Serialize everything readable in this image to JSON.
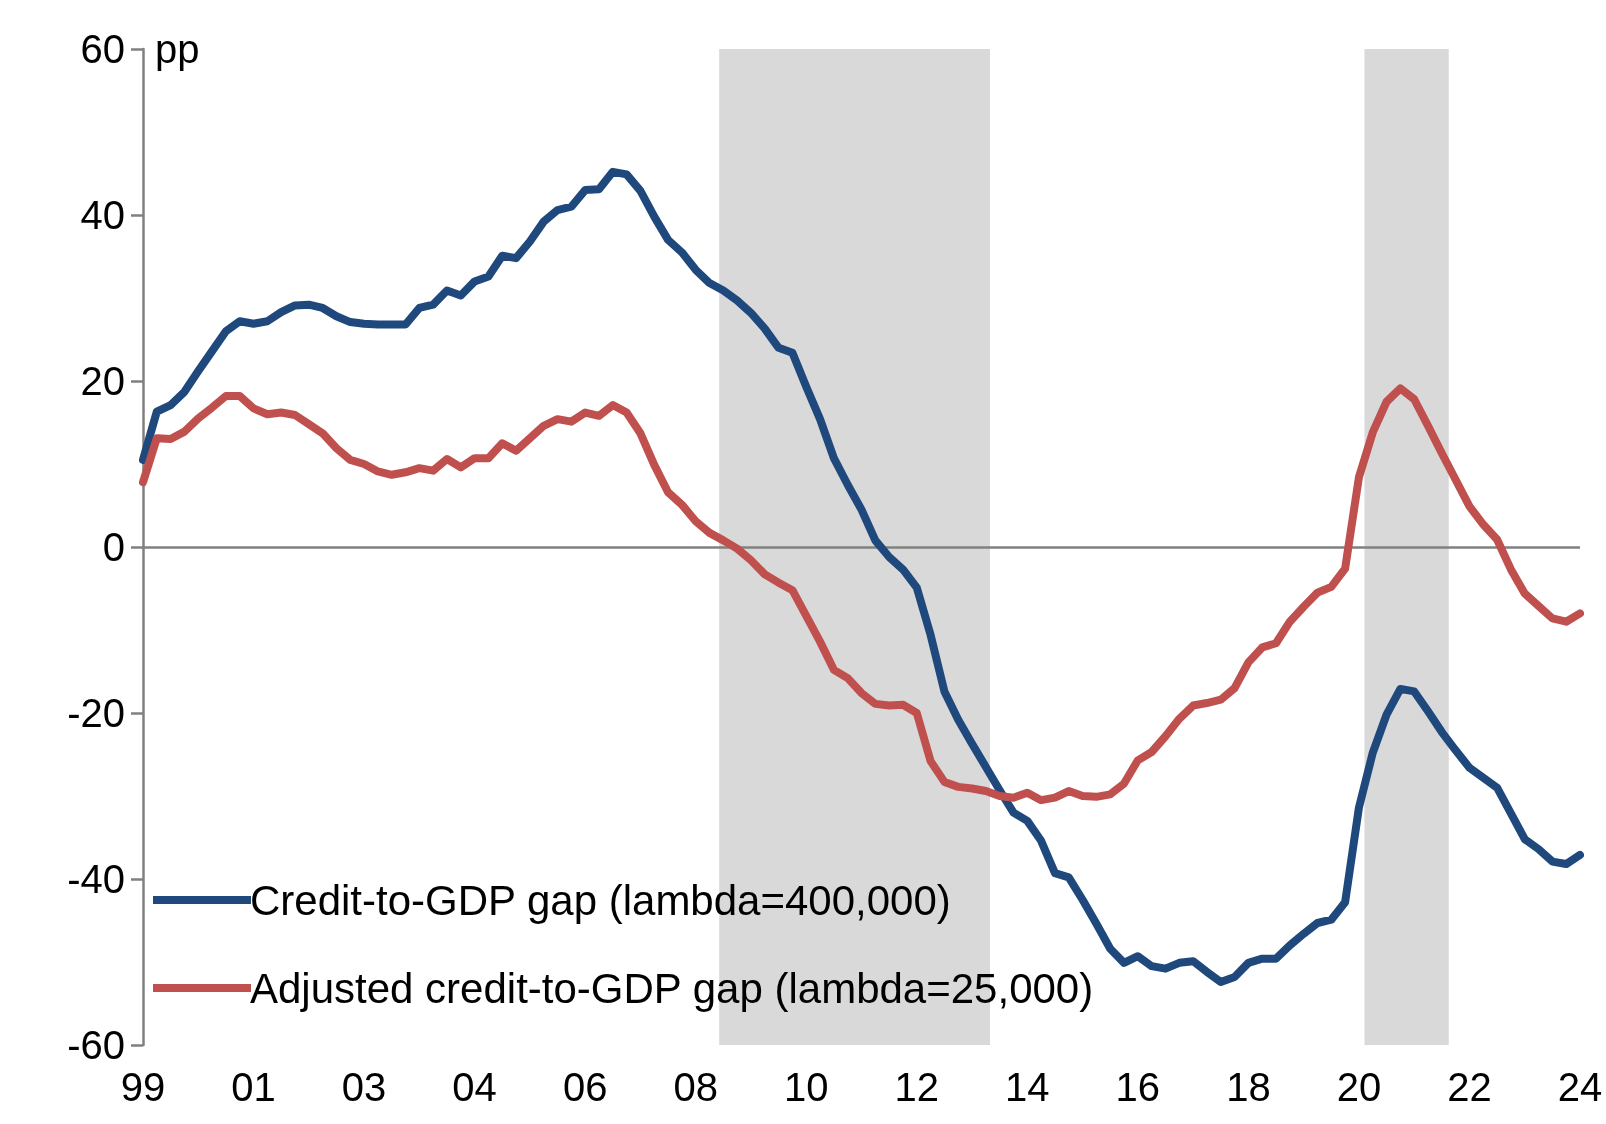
{
  "chart_data": {
    "type": "line",
    "ylabel": "pp",
    "categories": [
      "99",
      null,
      null,
      null,
      null,
      null,
      null,
      null,
      "01",
      null,
      null,
      null,
      null,
      null,
      null,
      null,
      "03",
      null,
      null,
      null,
      null,
      null,
      null,
      null,
      "04",
      null,
      null,
      null,
      null,
      null,
      null,
      null,
      "06",
      null,
      null,
      null,
      null,
      null,
      null,
      null,
      "08",
      null,
      null,
      null,
      null,
      null,
      null,
      null,
      "10",
      null,
      null,
      null,
      null,
      null,
      null,
      null,
      "12",
      null,
      null,
      null,
      null,
      null,
      null,
      null,
      "14",
      null,
      null,
      null,
      null,
      null,
      null,
      null,
      "16",
      null,
      null,
      null,
      null,
      null,
      null,
      null,
      "18",
      null,
      null,
      null,
      null,
      null,
      null,
      null,
      "20",
      null,
      null,
      null,
      null,
      null,
      null,
      null,
      "22",
      null,
      null,
      null,
      null,
      null,
      null,
      null,
      "24"
    ],
    "ylim": [
      -60,
      60
    ],
    "yticks": [
      -60,
      -40,
      -20,
      0,
      20,
      40,
      60
    ],
    "grid": false,
    "legend": "bottom left",
    "marker": "none",
    "line_style": "solid",
    "ref_lines": [
      {
        "axis": "y",
        "value": 0,
        "color": "#808080"
      }
    ],
    "series": [
      {
        "name": "Credit-to-GDP gap (lambda=400,000)",
        "color": "#1f497d",
        "values": [
          10.5,
          16.3,
          17.1,
          18.7,
          21.2,
          23.6,
          26.0,
          27.2,
          26.9,
          27.2,
          28.3,
          29.1,
          29.2,
          28.8,
          27.8,
          27.1,
          26.9,
          26.8,
          26.8,
          26.8,
          28.8,
          29.2,
          30.9,
          30.3,
          32.0,
          32.6,
          35.1,
          34.8,
          36.8,
          39.2,
          40.6,
          41.0,
          43.0,
          43.1,
          45.2,
          44.9,
          42.9,
          39.8,
          37.0,
          35.5,
          33.4,
          31.8,
          30.9,
          29.7,
          28.2,
          26.3,
          24.0,
          23.4,
          19.3,
          15.4,
          10.7,
          7.5,
          4.5,
          0.8,
          -1.2,
          -2.7,
          -4.9,
          -10.6,
          -17.4,
          -20.8,
          -23.7,
          -26.5,
          -29.3,
          -32.0,
          -33.0,
          -35.4,
          -39.3,
          -39.8,
          -42.5,
          -45.4,
          -48.4,
          -50.1,
          -49.3,
          -50.5,
          -50.8,
          -50.1,
          -49.9,
          -51.2,
          -52.4,
          -51.8,
          -50.1,
          -49.6,
          -49.6,
          -48.0,
          -46.6,
          -45.3,
          -44.9,
          -42.8,
          -31.4,
          -24.8,
          -20.2,
          -17.1,
          -17.4,
          -19.8,
          -22.3,
          -24.5,
          -26.6,
          -27.8,
          -29.0,
          -32.1,
          -35.2,
          -36.4,
          -37.9,
          -38.2,
          -37.1
        ]
      },
      {
        "name": "Adjusted credit-to-GDP gap (lambda=25,000)",
        "color": "#c0504d",
        "values": [
          7.8,
          13.1,
          13.0,
          13.9,
          15.5,
          16.8,
          18.2,
          18.2,
          16.7,
          16.0,
          16.2,
          15.9,
          14.8,
          13.7,
          11.9,
          10.5,
          10.0,
          9.1,
          8.7,
          9.0,
          9.5,
          9.2,
          10.6,
          9.6,
          10.7,
          10.7,
          12.5,
          11.6,
          13.1,
          14.6,
          15.4,
          15.1,
          16.2,
          15.8,
          17.1,
          16.2,
          13.7,
          9.9,
          6.6,
          5.1,
          3.1,
          1.7,
          0.8,
          -0.2,
          -1.6,
          -3.3,
          -4.3,
          -5.2,
          -8.3,
          -11.4,
          -14.8,
          -15.8,
          -17.6,
          -18.9,
          -19.1,
          -19.0,
          -20.0,
          -25.8,
          -28.3,
          -28.9,
          -29.1,
          -29.4,
          -30.0,
          -30.2,
          -29.6,
          -30.5,
          -30.2,
          -29.4,
          -30.0,
          -30.1,
          -29.8,
          -28.5,
          -25.7,
          -24.7,
          -22.8,
          -20.7,
          -19.1,
          -18.8,
          -18.4,
          -17.0,
          -13.9,
          -12.1,
          -11.6,
          -9.0,
          -7.2,
          -5.5,
          -4.8,
          -2.6,
          8.4,
          13.8,
          17.5,
          19.1,
          17.8,
          14.6,
          11.3,
          8.1,
          4.9,
          2.7,
          0.9,
          -2.7,
          -5.6,
          -7.1,
          -8.6,
          -9.0,
          -8.0
        ]
      }
    ]
  }
}
